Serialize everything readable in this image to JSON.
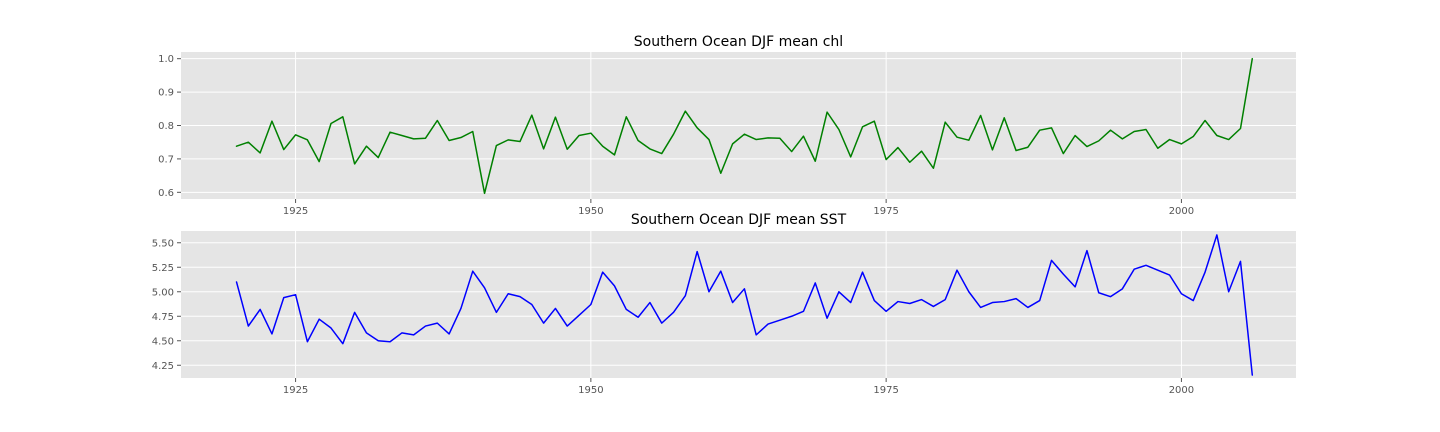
{
  "chart_data": [
    {
      "type": "line",
      "title": "Southern Ocean DJF mean chl",
      "xlabel": "",
      "ylabel": "",
      "xlim": [
        1915.3,
        2009.7
      ],
      "ylim": [
        0.58,
        1.02
      ],
      "xticks": [
        1925,
        1950,
        1975,
        2000
      ],
      "yticks": [
        0.6,
        0.7,
        0.8,
        0.9,
        1.0
      ],
      "ytick_labels": [
        "0.6",
        "0.7",
        "0.8",
        "0.9",
        "1.0"
      ],
      "grid": true,
      "color": "#008000",
      "x_start": 1920,
      "series": [
        {
          "values": [
            0.738,
            0.75,
            0.718,
            0.813,
            0.728,
            0.772,
            0.757,
            0.692,
            0.806,
            0.826,
            0.685,
            0.738,
            0.704,
            0.78,
            0.77,
            0.76,
            0.762,
            0.815,
            0.755,
            0.764,
            0.782,
            0.597,
            0.74,
            0.757,
            0.752,
            0.831,
            0.73,
            0.825,
            0.729,
            0.77,
            0.777,
            0.738,
            0.712,
            0.826,
            0.755,
            0.73,
            0.716,
            0.774,
            0.843,
            0.793,
            0.758,
            0.657,
            0.745,
            0.774,
            0.758,
            0.763,
            0.762,
            0.722,
            0.768,
            0.693,
            0.84,
            0.788,
            0.706,
            0.796,
            0.813,
            0.698,
            0.734,
            0.69,
            0.723,
            0.672,
            0.81,
            0.765,
            0.756,
            0.83,
            0.727,
            0.823,
            0.725,
            0.735,
            0.786,
            0.793,
            0.716,
            0.77,
            0.737,
            0.754,
            0.786,
            0.76,
            0.782,
            0.788,
            0.732,
            0.758,
            0.745,
            0.767,
            0.815,
            0.77,
            0.758,
            0.791,
            1.0
          ]
        }
      ]
    },
    {
      "type": "line",
      "title": "Southern Ocean DJF mean SST",
      "xlabel": "",
      "ylabel": "",
      "xlim": [
        1915.3,
        2009.7
      ],
      "ylim": [
        4.12,
        5.62
      ],
      "xticks": [
        1925,
        1950,
        1975,
        2000
      ],
      "yticks": [
        4.25,
        4.5,
        4.75,
        5.0,
        5.25,
        5.5
      ],
      "ytick_labels": [
        "4.25",
        "4.50",
        "4.75",
        "5.00",
        "5.25",
        "5.50"
      ],
      "grid": true,
      "color": "#0000ff",
      "x_start": 1920,
      "series": [
        {
          "values": [
            5.1,
            4.65,
            4.82,
            4.57,
            4.94,
            4.97,
            4.49,
            4.72,
            4.63,
            4.47,
            4.79,
            4.58,
            4.5,
            4.49,
            4.58,
            4.56,
            4.65,
            4.68,
            4.57,
            4.83,
            5.21,
            5.04,
            4.79,
            4.98,
            4.95,
            4.87,
            4.68,
            4.83,
            4.65,
            4.76,
            4.87,
            5.2,
            5.06,
            4.82,
            4.74,
            4.89,
            4.68,
            4.79,
            4.96,
            5.41,
            5.0,
            5.21,
            4.89,
            5.03,
            4.56,
            4.67,
            4.71,
            4.75,
            4.8,
            5.09,
            4.73,
            5.0,
            4.89,
            5.2,
            4.91,
            4.8,
            4.9,
            4.88,
            4.92,
            4.85,
            4.92,
            5.22,
            5.0,
            4.84,
            4.89,
            4.9,
            4.93,
            4.84,
            4.91,
            5.32,
            5.18,
            5.05,
            5.42,
            4.99,
            4.95,
            5.03,
            5.23,
            5.27,
            5.22,
            5.17,
            4.98,
            4.91,
            5.2,
            5.58,
            5.0,
            5.31,
            4.15
          ]
        }
      ]
    }
  ]
}
